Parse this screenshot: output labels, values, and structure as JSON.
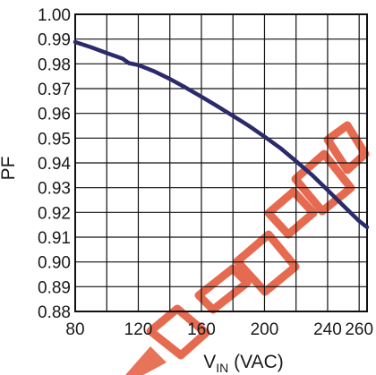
{
  "chart_data": {
    "type": "line",
    "title": "",
    "ylabel": "PF",
    "xlabel": {
      "main": "V",
      "subscript": "IN",
      "unit": " (VAC)"
    },
    "xlim": [
      80,
      265
    ],
    "ylim": [
      0.88,
      1.0
    ],
    "xticks": [
      80,
      120,
      160,
      200,
      240,
      260
    ],
    "xtick_labels": [
      "80",
      "120",
      "160",
      "200",
      "240",
      "260"
    ],
    "yticks": [
      0.88,
      0.89,
      0.9,
      0.91,
      0.92,
      0.93,
      0.94,
      0.95,
      0.96,
      0.97,
      0.98,
      0.99,
      1.0
    ],
    "ytick_labels": [
      "0.88",
      "0.89",
      "0.90",
      "0.91",
      "0.92",
      "0.93",
      "0.94",
      "0.95",
      "0.96",
      "0.97",
      "0.98",
      "0.99",
      "1.00"
    ],
    "grid": true,
    "series": [
      {
        "color": "#2b2a6b",
        "x": [
          80,
          90,
          100,
          110,
          114,
          120,
          130,
          140,
          150,
          160,
          170,
          180,
          190,
          200,
          210,
          220,
          230,
          240,
          250,
          260,
          265
        ],
        "y": [
          0.9888,
          0.9867,
          0.9844,
          0.9821,
          0.9803,
          0.9795,
          0.977,
          0.9739,
          0.9704,
          0.9667,
          0.9629,
          0.959,
          0.955,
          0.9506,
          0.946,
          0.9407,
          0.9352,
          0.929,
          0.9227,
          0.9165,
          0.914
        ]
      }
    ]
  },
  "watermark": {
    "text": "RECOMMENDED",
    "color": "#e35a3c"
  }
}
